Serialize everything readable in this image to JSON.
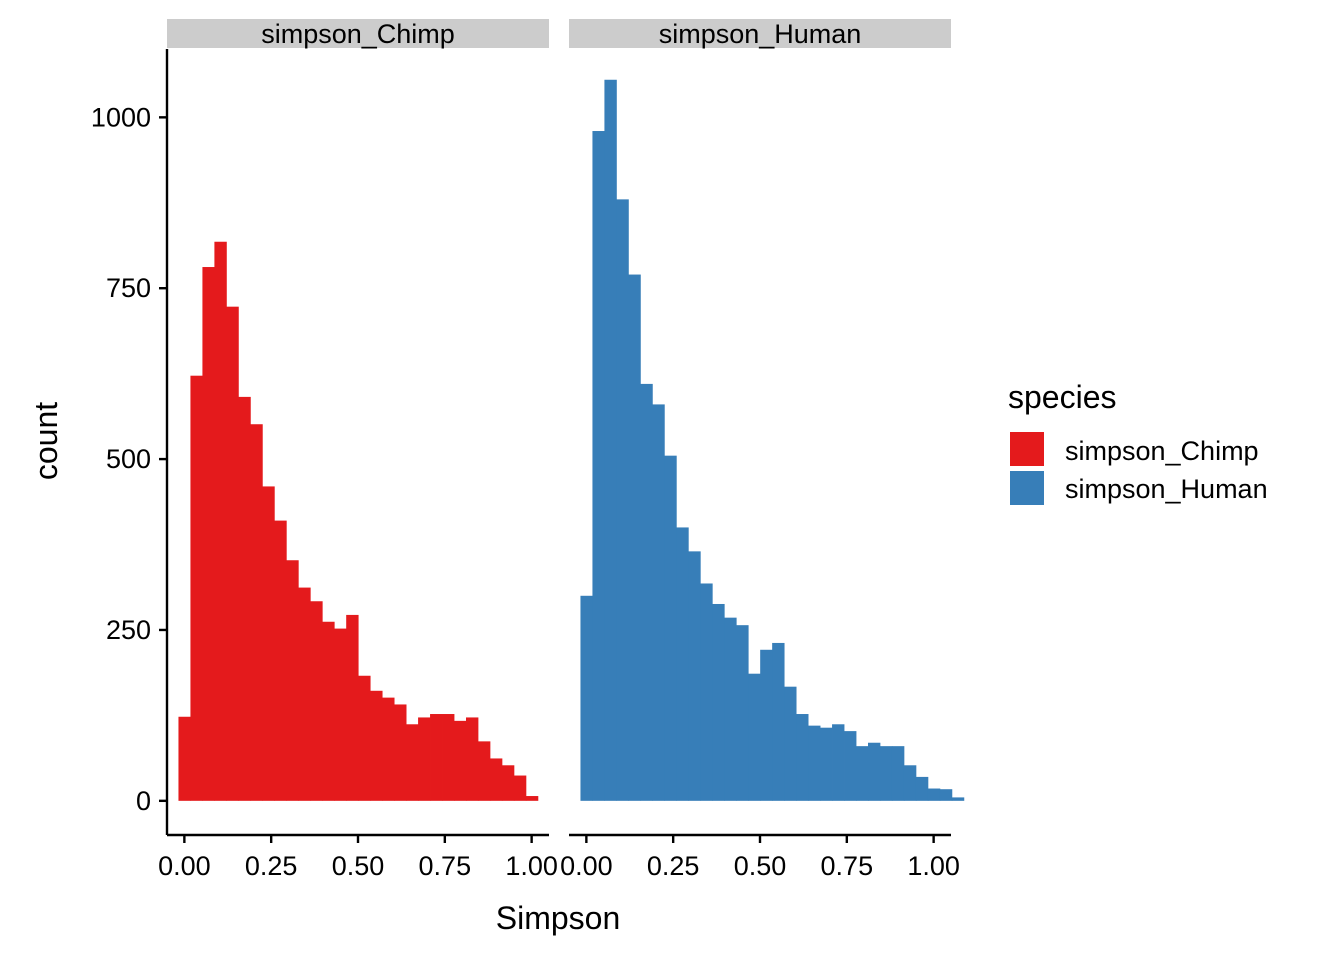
{
  "chart_data": {
    "type": "bar",
    "xlabel": "Simpson",
    "ylabel": "count",
    "x_ticks": [
      "0.00",
      "0.25",
      "0.50",
      "0.75",
      "1.00"
    ],
    "x_tick_values": [
      0,
      0.25,
      0.5,
      0.75,
      1.0
    ],
    "y_ticks": [
      "0",
      "250",
      "500",
      "750",
      "1000"
    ],
    "y_tick_values": [
      0,
      250,
      500,
      750,
      1000
    ],
    "xlim": [
      -0.05,
      1.05
    ],
    "ylim": [
      -50,
      1100
    ],
    "bin_width": 0.0345,
    "bin_start": -0.017,
    "grid": false,
    "legend": {
      "title": "species",
      "position": "right",
      "entries": [
        {
          "label": "simpson_Chimp",
          "color": "#E41A1C"
        },
        {
          "label": "simpson_Human",
          "color": "#377EB8"
        }
      ]
    },
    "panels": [
      {
        "strip": "simpson_Chimp",
        "color": "#E41A1C",
        "values": [
          123,
          622,
          781,
          818,
          723,
          591,
          551,
          460,
          410,
          352,
          312,
          292,
          262,
          252,
          272,
          183,
          161,
          151,
          141,
          112,
          122,
          127,
          127,
          117,
          122,
          87,
          62,
          52,
          37,
          7
        ]
      },
      {
        "strip": "simpson_Human",
        "color": "#377EB8",
        "values": [
          300,
          980,
          1055,
          880,
          770,
          610,
          580,
          505,
          400,
          365,
          318,
          288,
          268,
          257,
          186,
          221,
          231,
          167,
          127,
          110,
          107,
          112,
          102,
          80,
          85,
          80,
          80,
          52,
          35,
          18,
          17,
          5
        ]
      }
    ]
  }
}
